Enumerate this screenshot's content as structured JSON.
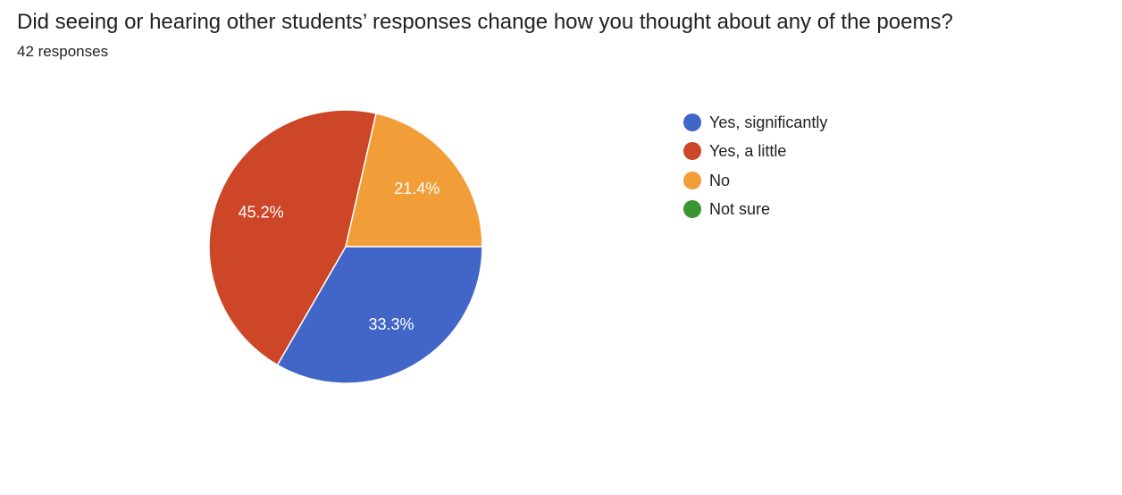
{
  "question": {
    "title": "Did seeing or hearing other students’ responses change how you thought about any of the poems?",
    "response_count": "42 responses"
  },
  "chart_data": {
    "type": "pie",
    "categories": [
      "Yes, significantly",
      "Yes, a little",
      "No",
      "Not sure"
    ],
    "values": [
      33.3,
      45.2,
      21.4,
      0
    ],
    "data_labels": [
      "33.3%",
      "45.2%",
      "21.4%",
      ""
    ],
    "colors": [
      "#4166c7",
      "#cc4627",
      "#f29e38",
      "#3b9533"
    ],
    "legend_position": "right",
    "title": "",
    "xlabel": "",
    "ylabel": ""
  }
}
